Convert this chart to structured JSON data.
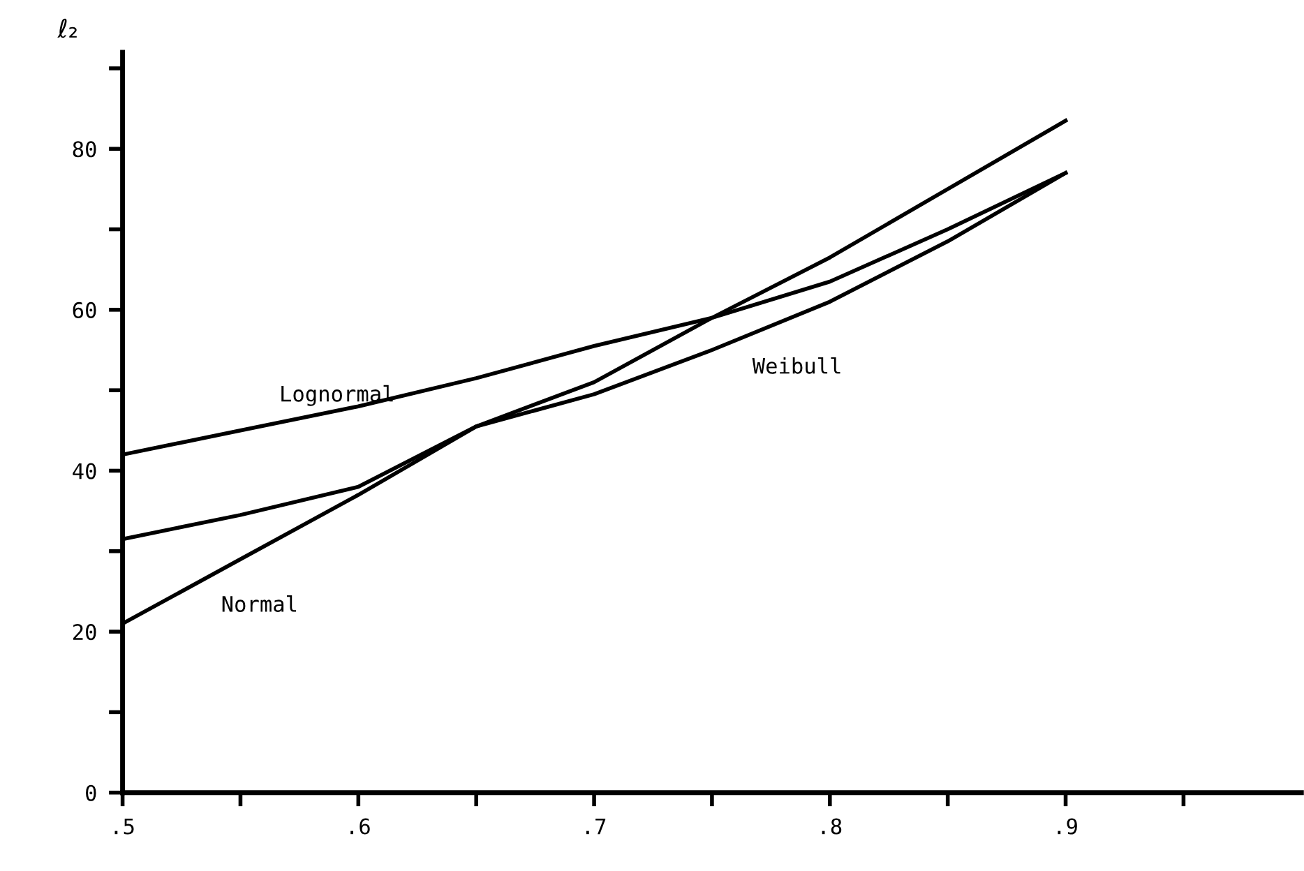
{
  "chart_data": {
    "type": "line",
    "ylabel": "ℓ₂",
    "x": [
      0.5,
      0.55,
      0.6,
      0.65,
      0.7,
      0.75,
      0.8,
      0.85,
      0.9
    ],
    "series": [
      {
        "name": "Normal",
        "color": "#000000",
        "values": [
          21,
          29,
          37,
          45.5,
          51,
          59,
          66.5,
          75,
          83.5
        ]
      },
      {
        "name": "Lognormal",
        "color": "#000000",
        "values": [
          42,
          45,
          48,
          51.5,
          55.5,
          59,
          63.5,
          70,
          77
        ]
      },
      {
        "name": "Weibull",
        "color": "#000000",
        "values": [
          31.5,
          34.5,
          38,
          45.5,
          49.5,
          55,
          61,
          68.5,
          77
        ]
      }
    ],
    "xlim": [
      0.5,
      1.0
    ],
    "ylim": [
      0,
      92
    ],
    "xticks": [
      {
        "value": 0.5,
        "label": ".5"
      },
      {
        "value": 0.55,
        "label": null
      },
      {
        "value": 0.6,
        "label": ".6"
      },
      {
        "value": 0.65,
        "label": null
      },
      {
        "value": 0.7,
        "label": ".7"
      },
      {
        "value": 0.75,
        "label": null
      },
      {
        "value": 0.8,
        "label": ".8"
      },
      {
        "value": 0.85,
        "label": null
      },
      {
        "value": 0.9,
        "label": ".9"
      },
      {
        "value": 0.95,
        "label": null
      }
    ],
    "yticks": [
      0,
      {
        "value": 10,
        "label": null
      },
      20,
      {
        "value": 30,
        "label": null
      },
      40,
      {
        "value": 50,
        "label": null
      },
      60,
      {
        "value": 70,
        "label": null
      },
      80,
      {
        "value": 90,
        "label": null
      }
    ],
    "grid": false,
    "legend": false,
    "marker": "none",
    "line_style": "solid"
  }
}
